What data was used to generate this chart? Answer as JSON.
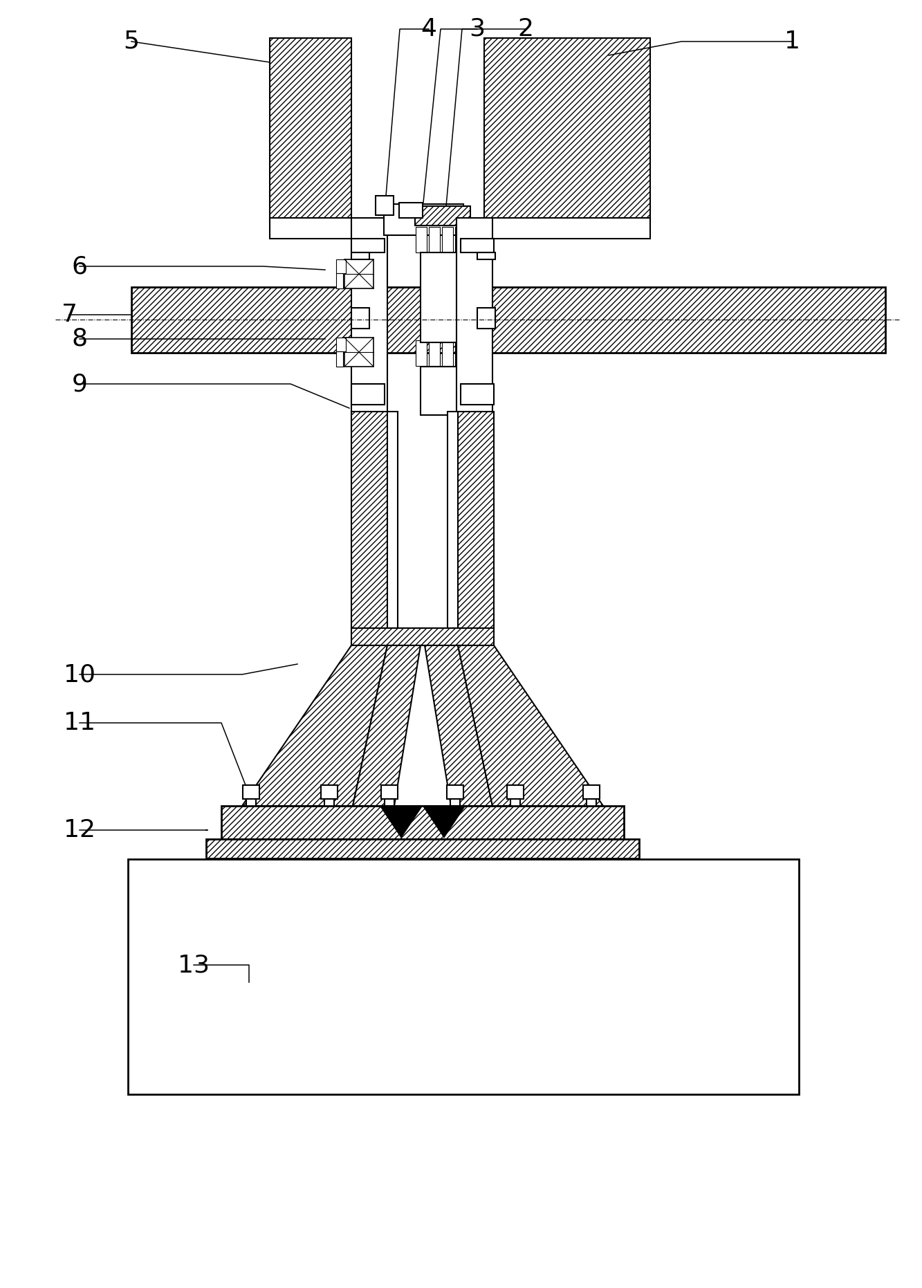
{
  "figsize": [
    13.33,
    18.62
  ],
  "dpi": 100,
  "bg": "#ffffff",
  "lc": "#000000",
  "lw": 1.5,
  "lw2": 2.0,
  "lw_thin": 0.8,
  "label_fs": 26
}
